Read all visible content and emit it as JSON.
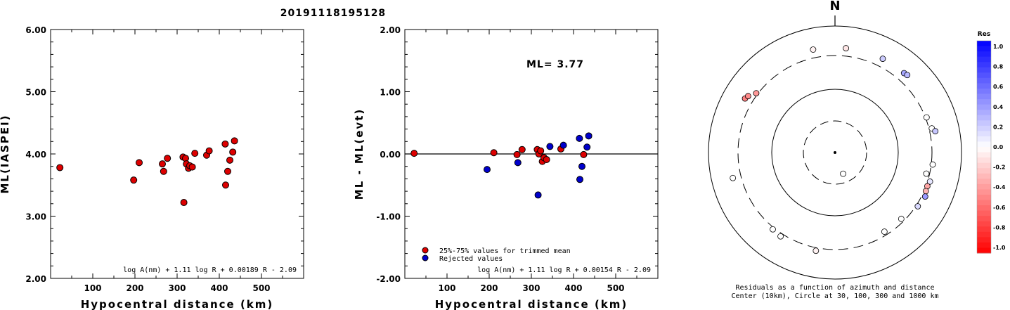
{
  "title": "20191118195128",
  "chart_data": [
    {
      "type": "scatter",
      "xlabel": "Hypocentral distance (km)",
      "ylabel": "ML(IASPEI)",
      "xlim": [
        0,
        600
      ],
      "ylim": [
        2.0,
        6.0
      ],
      "xticks": [
        "100",
        "200",
        "300",
        "400",
        "500"
      ],
      "yticks": [
        "2.00",
        "3.00",
        "4.00",
        "5.00",
        "6.00"
      ],
      "formula": "log A(nm) + 1.11 log R + 0.00189 R - 2.09",
      "grid": false,
      "color": "#dd0000",
      "points": [
        [
          22,
          3.78
        ],
        [
          197,
          3.58
        ],
        [
          210,
          3.86
        ],
        [
          265,
          3.84
        ],
        [
          268,
          3.72
        ],
        [
          277,
          3.93
        ],
        [
          314,
          3.95
        ],
        [
          316,
          3.22
        ],
        [
          320,
          3.93
        ],
        [
          322,
          3.84
        ],
        [
          327,
          3.77
        ],
        [
          330,
          3.81
        ],
        [
          336,
          3.79
        ],
        [
          342,
          4.01
        ],
        [
          370,
          3.98
        ],
        [
          376,
          4.05
        ],
        [
          414,
          4.16
        ],
        [
          415,
          3.5
        ],
        [
          420,
          3.72
        ],
        [
          425,
          3.9
        ],
        [
          432,
          4.03
        ],
        [
          436,
          4.21
        ]
      ]
    },
    {
      "type": "scatter",
      "xlabel": "Hypocentral distance (km)",
      "ylabel": "ML - ML(evt)",
      "xlim": [
        0,
        600
      ],
      "ylim": [
        -2.0,
        2.0
      ],
      "xticks": [
        "100",
        "200",
        "300",
        "400",
        "500"
      ],
      "yticks": [
        "-2.00",
        "-1.00",
        "0.00",
        "1.00",
        "2.00"
      ],
      "annotation": "ML= 3.77",
      "formula": "log A(nm) + 1.11 log R + 0.00154 R - 2.09",
      "reference_line": 0.0,
      "legend": [
        {
          "label": "25%-75% values for trimmed mean",
          "color": "#dd0000"
        },
        {
          "label": "Rejected values",
          "color": "#0000cc"
        }
      ],
      "series": [
        {
          "name": "25%-75% values for trimmed mean",
          "color": "#dd0000",
          "points": [
            [
              22,
              0.01
            ],
            [
              211,
              0.02
            ],
            [
              266,
              -0.01
            ],
            [
              278,
              0.07
            ],
            [
              314,
              0.07
            ],
            [
              318,
              0.0
            ],
            [
              322,
              0.05
            ],
            [
              326,
              -0.12
            ],
            [
              330,
              -0.06
            ],
            [
              336,
              -0.09
            ],
            [
              370,
              0.08
            ],
            [
              424,
              -0.01
            ]
          ]
        },
        {
          "name": "Rejected values",
          "color": "#0000cc",
          "points": [
            [
              195,
              -0.25
            ],
            [
              268,
              -0.14
            ],
            [
              316,
              -0.66
            ],
            [
              344,
              0.12
            ],
            [
              376,
              0.14
            ],
            [
              414,
              0.25
            ],
            [
              415,
              -0.41
            ],
            [
              420,
              -0.2
            ],
            [
              432,
              0.11
            ],
            [
              436,
              0.29
            ]
          ]
        }
      ]
    },
    {
      "type": "polar-scatter",
      "north_label": "N",
      "caption_line1": "Residuals as a function of azimuth and distance",
      "caption_line2": "Center (10km), Circle at 30, 100, 300 and 1000 km",
      "colorbar_label": "Res",
      "colorbar_ticks": [
        "1.0",
        "0.8",
        "0.6",
        "0.4",
        "0.2",
        "0.0",
        "-0.2",
        "-0.4",
        "-0.6",
        "-0.8",
        "-1.0"
      ],
      "positive_color": "#0000ff",
      "negative_color": "#ff0000",
      "stations": [
        {
          "az": 159,
          "dist": 22,
          "res": 0.0
        },
        {
          "az": 348,
          "dist": 420,
          "res": -0.05
        },
        {
          "az": 6,
          "dist": 414,
          "res": -0.1
        },
        {
          "az": 27,
          "dist": 420,
          "res": 0.2
        },
        {
          "az": 41,
          "dist": 420,
          "res": 0.35
        },
        {
          "az": 43,
          "dist": 432,
          "res": 0.28
        },
        {
          "az": 69,
          "dist": 314,
          "res": 0.0
        },
        {
          "az": 76,
          "dist": 336,
          "res": 0.0
        },
        {
          "az": 78,
          "dist": 376,
          "res": 0.22
        },
        {
          "az": 97,
          "dist": 318,
          "res": 0.0
        },
        {
          "az": 103,
          "dist": 270,
          "res": 0.0
        },
        {
          "az": 107,
          "dist": 330,
          "res": 0.1
        },
        {
          "az": 110,
          "dist": 316,
          "res": -0.35
        },
        {
          "az": 113,
          "dist": 322,
          "res": -0.3
        },
        {
          "az": 116,
          "dist": 344,
          "res": 0.4
        },
        {
          "az": 123,
          "dist": 322,
          "res": 0.15
        },
        {
          "az": 135,
          "dist": 270,
          "res": 0.0
        },
        {
          "az": 148,
          "dist": 266,
          "res": 0.0
        },
        {
          "az": 191,
          "dist": 340,
          "res": -0.05
        },
        {
          "az": 213,
          "dist": 338,
          "res": 0.0
        },
        {
          "az": 219,
          "dist": 323,
          "res": 0.0
        },
        {
          "az": 256,
          "dist": 420,
          "res": 0.0
        },
        {
          "az": 301,
          "dist": 415,
          "res": -0.5
        },
        {
          "az": 303,
          "dist": 393,
          "res": -0.45
        },
        {
          "az": 307,
          "dist": 320,
          "res": -0.4
        }
      ]
    }
  ]
}
